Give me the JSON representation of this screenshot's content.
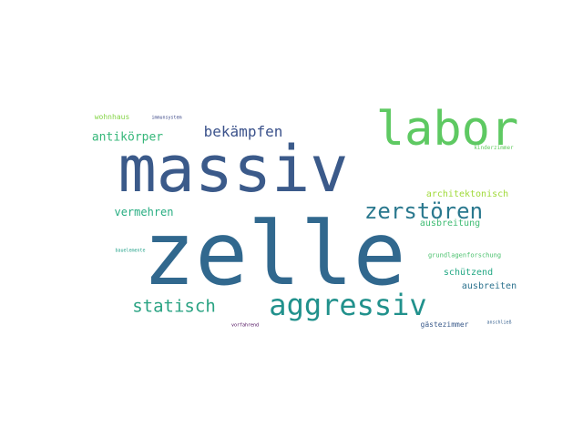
{
  "words": [
    {
      "text": "zelle",
      "color": "#31688e"
    },
    {
      "text": "massiv",
      "color": "#3b5a8a"
    },
    {
      "text": "labor",
      "color": "#5ec962"
    },
    {
      "text": "aggressiv",
      "color": "#21918c"
    },
    {
      "text": "zerstören",
      "color": "#2a788e"
    },
    {
      "text": "statisch",
      "color": "#2aa383"
    },
    {
      "text": "bekämpfen",
      "color": "#3b528b"
    },
    {
      "text": "antikörper",
      "color": "#35b779"
    },
    {
      "text": "vermehren",
      "color": "#27ad81"
    },
    {
      "text": "architektonisch",
      "color": "#a0da39"
    },
    {
      "text": "ausbreitung",
      "color": "#3fbc73"
    },
    {
      "text": "schützend",
      "color": "#22a884"
    },
    {
      "text": "ausbreiten",
      "color": "#2c728e"
    },
    {
      "text": "wohnhaus",
      "color": "#86d549"
    },
    {
      "text": "immunsystem",
      "color": "#3e4a89"
    },
    {
      "text": "kinderzimmer",
      "color": "#63cb5f"
    },
    {
      "text": "grundlagenforschung",
      "color": "#4ac16d"
    },
    {
      "text": "bauelemente",
      "color": "#1fa088"
    },
    {
      "text": "gästezimmer",
      "color": "#3b5b8b"
    },
    {
      "text": "anschließ",
      "color": "#355f8d"
    },
    {
      "text": "vorfahrend",
      "color": "#440154"
    }
  ]
}
